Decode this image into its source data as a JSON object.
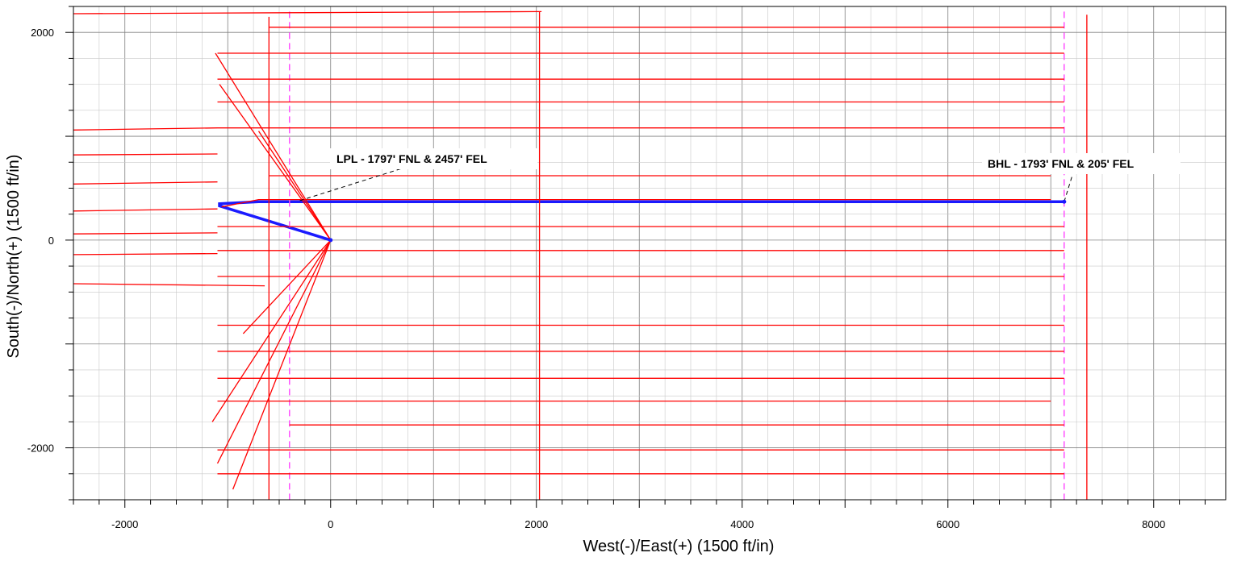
{
  "chart_data": {
    "type": "line",
    "title": "",
    "xlabel": "West(-)/East(+) (1500 ft/in)",
    "ylabel": "South(-)/North(+) (1500 ft/in)",
    "xlim": [
      -2500,
      8700
    ],
    "ylim": [
      -2500,
      2250
    ],
    "x_ticks": [
      -2000,
      0,
      2000,
      4000,
      6000,
      8000
    ],
    "y_ticks": [
      -2000,
      0,
      2000
    ],
    "x_tick_labels": [
      "-2000",
      "0",
      "2000",
      "4000",
      "6000",
      "8000"
    ],
    "y_tick_labels": [
      "-2000",
      "0",
      "2000"
    ],
    "grid_minor_step": 250,
    "grid": true,
    "colors": {
      "offset_wells": "#ff0000",
      "plan_well": "#1a1aff",
      "hardlines": "#ff44ff",
      "grid": "#c8c8c8",
      "grid_major": "#808080"
    },
    "annotations": [
      {
        "text": "LPL - 1797' FNL & 2457' FEL",
        "x": -300,
        "y": 380
      },
      {
        "text": "BHL - 1793' FNL & 205' FEL",
        "x": 7130,
        "y": 370
      }
    ],
    "series": [
      {
        "role": "plan-well",
        "color": "#1a1aff",
        "x": [
          0,
          -1080,
          -1080,
          -700,
          7130
        ],
        "y": [
          0,
          330,
          350,
          370,
          370
        ]
      },
      {
        "role": "hardline",
        "color": "#ff44ff",
        "x": [
          -400,
          -400
        ],
        "y": [
          2200,
          -2500
        ]
      },
      {
        "role": "hardline",
        "color": "#ff44ff",
        "x": [
          7130,
          7130
        ],
        "y": [
          2200,
          -2500
        ]
      },
      {
        "role": "offset-well",
        "color": "#ff0000",
        "x": [
          -2500,
          2050
        ],
        "y": [
          2180,
          2200
        ]
      },
      {
        "role": "offset-well",
        "color": "#ff0000",
        "x": [
          -600,
          7130
        ],
        "y": [
          2050,
          2050
        ]
      },
      {
        "role": "offset-well",
        "color": "#ff0000",
        "x": [
          -1100,
          7130
        ],
        "y": [
          1800,
          1800
        ]
      },
      {
        "role": "offset-well",
        "color": "#ff0000",
        "x": [
          -1100,
          7130
        ],
        "y": [
          1550,
          1550
        ]
      },
      {
        "role": "offset-well",
        "color": "#ff0000",
        "x": [
          -1100,
          7130
        ],
        "y": [
          1330,
          1330
        ]
      },
      {
        "role": "offset-well",
        "color": "#ff0000",
        "x": [
          -1100,
          7130
        ],
        "y": [
          1080,
          1080
        ]
      },
      {
        "role": "offset-well",
        "color": "#ff0000",
        "x": [
          -600,
          7000
        ],
        "y": [
          620,
          620
        ]
      },
      {
        "role": "offset-well",
        "color": "#ff0000",
        "x": [
          -1100,
          7130
        ],
        "y": [
          130,
          130
        ]
      },
      {
        "role": "offset-well",
        "color": "#ff0000",
        "x": [
          -1100,
          7130
        ],
        "y": [
          -100,
          -100
        ]
      },
      {
        "role": "offset-well",
        "color": "#ff0000",
        "x": [
          -1100,
          7130
        ],
        "y": [
          -350,
          -350
        ]
      },
      {
        "role": "offset-well",
        "color": "#ff0000",
        "x": [
          -1100,
          7130
        ],
        "y": [
          -820,
          -820
        ]
      },
      {
        "role": "offset-well",
        "color": "#ff0000",
        "x": [
          -1100,
          7130
        ],
        "y": [
          -1070,
          -1070
        ]
      },
      {
        "role": "offset-well",
        "color": "#ff0000",
        "x": [
          -1100,
          7130
        ],
        "y": [
          -1330,
          -1330
        ]
      },
      {
        "role": "offset-well",
        "color": "#ff0000",
        "x": [
          -1100,
          7000
        ],
        "y": [
          -1550,
          -1550
        ]
      },
      {
        "role": "offset-well",
        "color": "#ff0000",
        "x": [
          -400,
          7130
        ],
        "y": [
          -1780,
          -1780
        ]
      },
      {
        "role": "offset-well",
        "color": "#ff0000",
        "x": [
          -1100,
          7130
        ],
        "y": [
          -2020,
          -2020
        ]
      },
      {
        "role": "offset-well",
        "color": "#ff0000",
        "x": [
          -1100,
          7130
        ],
        "y": [
          -2250,
          -2250
        ]
      },
      {
        "role": "offset-well",
        "color": "#ff0000",
        "x": [
          -2500,
          -640
        ],
        "y": [
          -420,
          -440
        ]
      },
      {
        "role": "offset-well",
        "color": "#ff0000",
        "x": [
          -2500,
          -1100
        ],
        "y": [
          1060,
          1080
        ]
      },
      {
        "role": "offset-well",
        "color": "#ff0000",
        "x": [
          -2500,
          -1100
        ],
        "y": [
          820,
          830
        ]
      },
      {
        "role": "offset-well",
        "color": "#ff0000",
        "x": [
          -2500,
          -1100
        ],
        "y": [
          540,
          560
        ]
      },
      {
        "role": "offset-well",
        "color": "#ff0000",
        "x": [
          -2500,
          -1100
        ],
        "y": [
          280,
          300
        ]
      },
      {
        "role": "offset-well",
        "color": "#ff0000",
        "x": [
          -2500,
          -1100
        ],
        "y": [
          60,
          70
        ]
      },
      {
        "role": "offset-well",
        "color": "#ff0000",
        "x": [
          -2500,
          -1100
        ],
        "y": [
          -140,
          -130
        ]
      },
      {
        "role": "offset-well",
        "color": "#ff0000",
        "x": [
          2030,
          2030
        ],
        "y": [
          2200,
          -2500
        ]
      },
      {
        "role": "offset-well",
        "color": "#ff0000",
        "x": [
          -600,
          -600
        ],
        "y": [
          2150,
          -2500
        ]
      },
      {
        "role": "offset-well",
        "color": "#ff0000",
        "x": [
          7350,
          7350
        ],
        "y": [
          2170,
          -2500
        ]
      },
      {
        "role": "offset-well",
        "color": "#ff0000",
        "x": [
          0,
          -1150
        ],
        "y": [
          0,
          -1750
        ]
      },
      {
        "role": "offset-well",
        "color": "#ff0000",
        "x": [
          0,
          -1100
        ],
        "y": [
          0,
          -2150
        ]
      },
      {
        "role": "offset-well",
        "color": "#ff0000",
        "x": [
          0,
          -950
        ],
        "y": [
          0,
          -2400
        ]
      },
      {
        "role": "offset-well",
        "color": "#ff0000",
        "x": [
          0,
          -1120
        ],
        "y": [
          0,
          1800
        ]
      },
      {
        "role": "offset-well",
        "color": "#ff0000",
        "x": [
          0,
          -1080
        ],
        "y": [
          0,
          1500
        ]
      },
      {
        "role": "offset-well",
        "color": "#ff0000",
        "x": [
          0,
          -700
        ],
        "y": [
          0,
          1050
        ]
      },
      {
        "role": "offset-well",
        "color": "#ff0000",
        "x": [
          0,
          -850
        ],
        "y": [
          0,
          -900
        ]
      },
      {
        "role": "offset-well",
        "color": "#ff0000",
        "x": [
          -1060,
          -700,
          7000
        ],
        "y": [
          320,
          390,
          390
        ]
      }
    ]
  }
}
